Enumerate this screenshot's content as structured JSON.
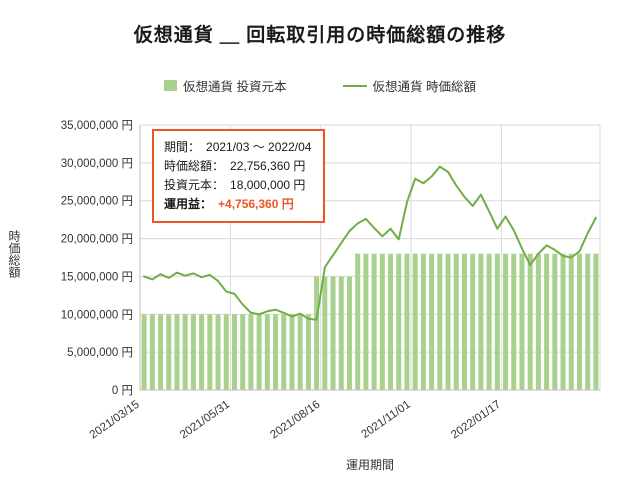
{
  "chart_data": {
    "type": "combo",
    "title": "仮想通貨 ＿ 回転取引用の時価総額の推移",
    "xlabel": "運用期間",
    "ylabel": "時価総額",
    "ylim": [
      0,
      35000000
    ],
    "ytick_step": 5000000,
    "ytick_suffix": " 円",
    "grid": true,
    "legend_position": "top",
    "x_ticks": [
      {
        "index": 0,
        "label": "2021/03/15"
      },
      {
        "index": 11,
        "label": "2021/05/31"
      },
      {
        "index": 22,
        "label": "2021/08/16"
      },
      {
        "index": 33,
        "label": "2021/11/01"
      },
      {
        "index": 44,
        "label": "2022/01/17"
      }
    ],
    "colors": {
      "grid": "#d9d9d9",
      "axis": "#bfbfbf",
      "text": "#333333"
    },
    "series": [
      {
        "name": "仮想通貨 投資元本",
        "type": "bar",
        "color": "#a9d18e",
        "values": [
          10000000,
          10000000,
          10000000,
          10000000,
          10000000,
          10000000,
          10000000,
          10000000,
          10000000,
          10000000,
          10000000,
          10000000,
          10000000,
          10000000,
          10000000,
          10000000,
          10000000,
          10000000,
          10000000,
          10000000,
          10000000,
          15000000,
          15000000,
          15000000,
          15000000,
          15000000,
          18000000,
          18000000,
          18000000,
          18000000,
          18000000,
          18000000,
          18000000,
          18000000,
          18000000,
          18000000,
          18000000,
          18000000,
          18000000,
          18000000,
          18000000,
          18000000,
          18000000,
          18000000,
          18000000,
          18000000,
          18000000,
          18000000,
          18000000,
          18000000,
          18000000,
          18000000,
          18000000,
          18000000,
          18000000,
          18000000
        ]
      },
      {
        "name": "仮想通貨 時価総額",
        "type": "line",
        "color": "#70ad47",
        "values": [
          15000000,
          14600000,
          15300000,
          14800000,
          15500000,
          15100000,
          15400000,
          14900000,
          15200000,
          14400000,
          13000000,
          12700000,
          11300000,
          10200000,
          10000000,
          10400000,
          10600000,
          10200000,
          9700000,
          10100000,
          9400000,
          9300000,
          16200000,
          17800000,
          19400000,
          21000000,
          22000000,
          22600000,
          21400000,
          20300000,
          21300000,
          19900000,
          24800000,
          27900000,
          27300000,
          28200000,
          29500000,
          28800000,
          27000000,
          25500000,
          24300000,
          25800000,
          23600000,
          21300000,
          22900000,
          21100000,
          18700000,
          16500000,
          18000000,
          19100000,
          18500000,
          17700000,
          17500000,
          18300000,
          20700000,
          22756360
        ]
      }
    ]
  },
  "annotation": {
    "rows": [
      {
        "label": "期間：",
        "value": "2021/03 ～ 2022/04"
      },
      {
        "label": "時価総額：",
        "value": "22,756,360 円"
      },
      {
        "label": "投資元本：",
        "value": "18,000,000 円"
      },
      {
        "label": "運用益：",
        "value": "+4,756,360 円"
      }
    ]
  }
}
